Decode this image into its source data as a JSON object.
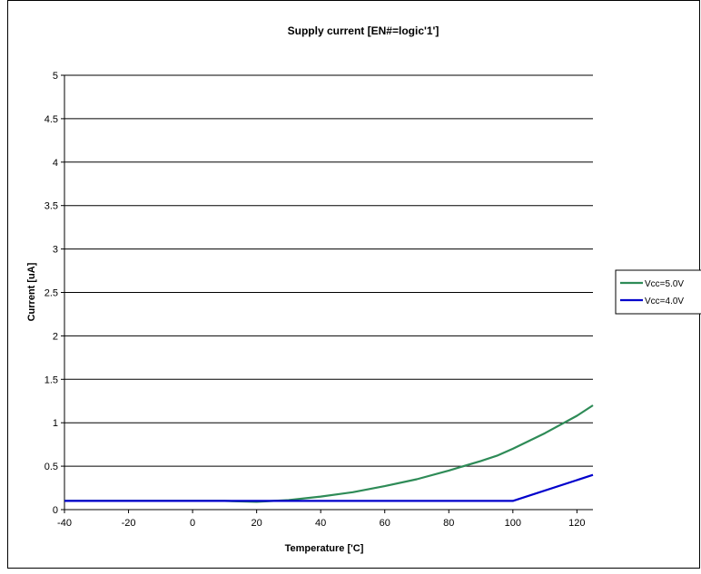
{
  "chart_data": {
    "type": "line",
    "title": "Supply current [EN#=logic'1']",
    "xlabel": "Temperature ['C]",
    "ylabel": "Current [uA]",
    "xlim": [
      -40,
      125
    ],
    "ylim": [
      0,
      5
    ],
    "x_ticks": [
      -40,
      -20,
      0,
      20,
      40,
      60,
      80,
      100,
      120
    ],
    "y_ticks": [
      0,
      0.5,
      1,
      1.5,
      2,
      2.5,
      3,
      3.5,
      4,
      4.5,
      5
    ],
    "x_tick_labels": [
      "-40",
      "-20",
      "0",
      "20",
      "40",
      "60",
      "80",
      "100",
      "120"
    ],
    "y_tick_labels": [
      "0",
      "0.5",
      "1",
      "1.5",
      "2",
      "2.5",
      "3",
      "3.5",
      "4",
      "4.5",
      "5"
    ],
    "grid": true,
    "legend_position": "right",
    "series": [
      {
        "name": "Vcc=5.0V",
        "color": "#2e8b57",
        "x": [
          -40,
          -20,
          0,
          10,
          20,
          30,
          40,
          50,
          60,
          70,
          80,
          90,
          95,
          100,
          110,
          120,
          125
        ],
        "y": [
          0.1,
          0.1,
          0.1,
          0.1,
          0.09,
          0.11,
          0.15,
          0.2,
          0.27,
          0.35,
          0.45,
          0.56,
          0.62,
          0.7,
          0.88,
          1.08,
          1.2
        ]
      },
      {
        "name": "Vcc=4.0V",
        "color": "#0000cc",
        "x": [
          -40,
          -20,
          0,
          20,
          40,
          60,
          80,
          100,
          125
        ],
        "y": [
          0.1,
          0.1,
          0.1,
          0.1,
          0.1,
          0.1,
          0.1,
          0.1,
          0.4
        ]
      }
    ]
  }
}
